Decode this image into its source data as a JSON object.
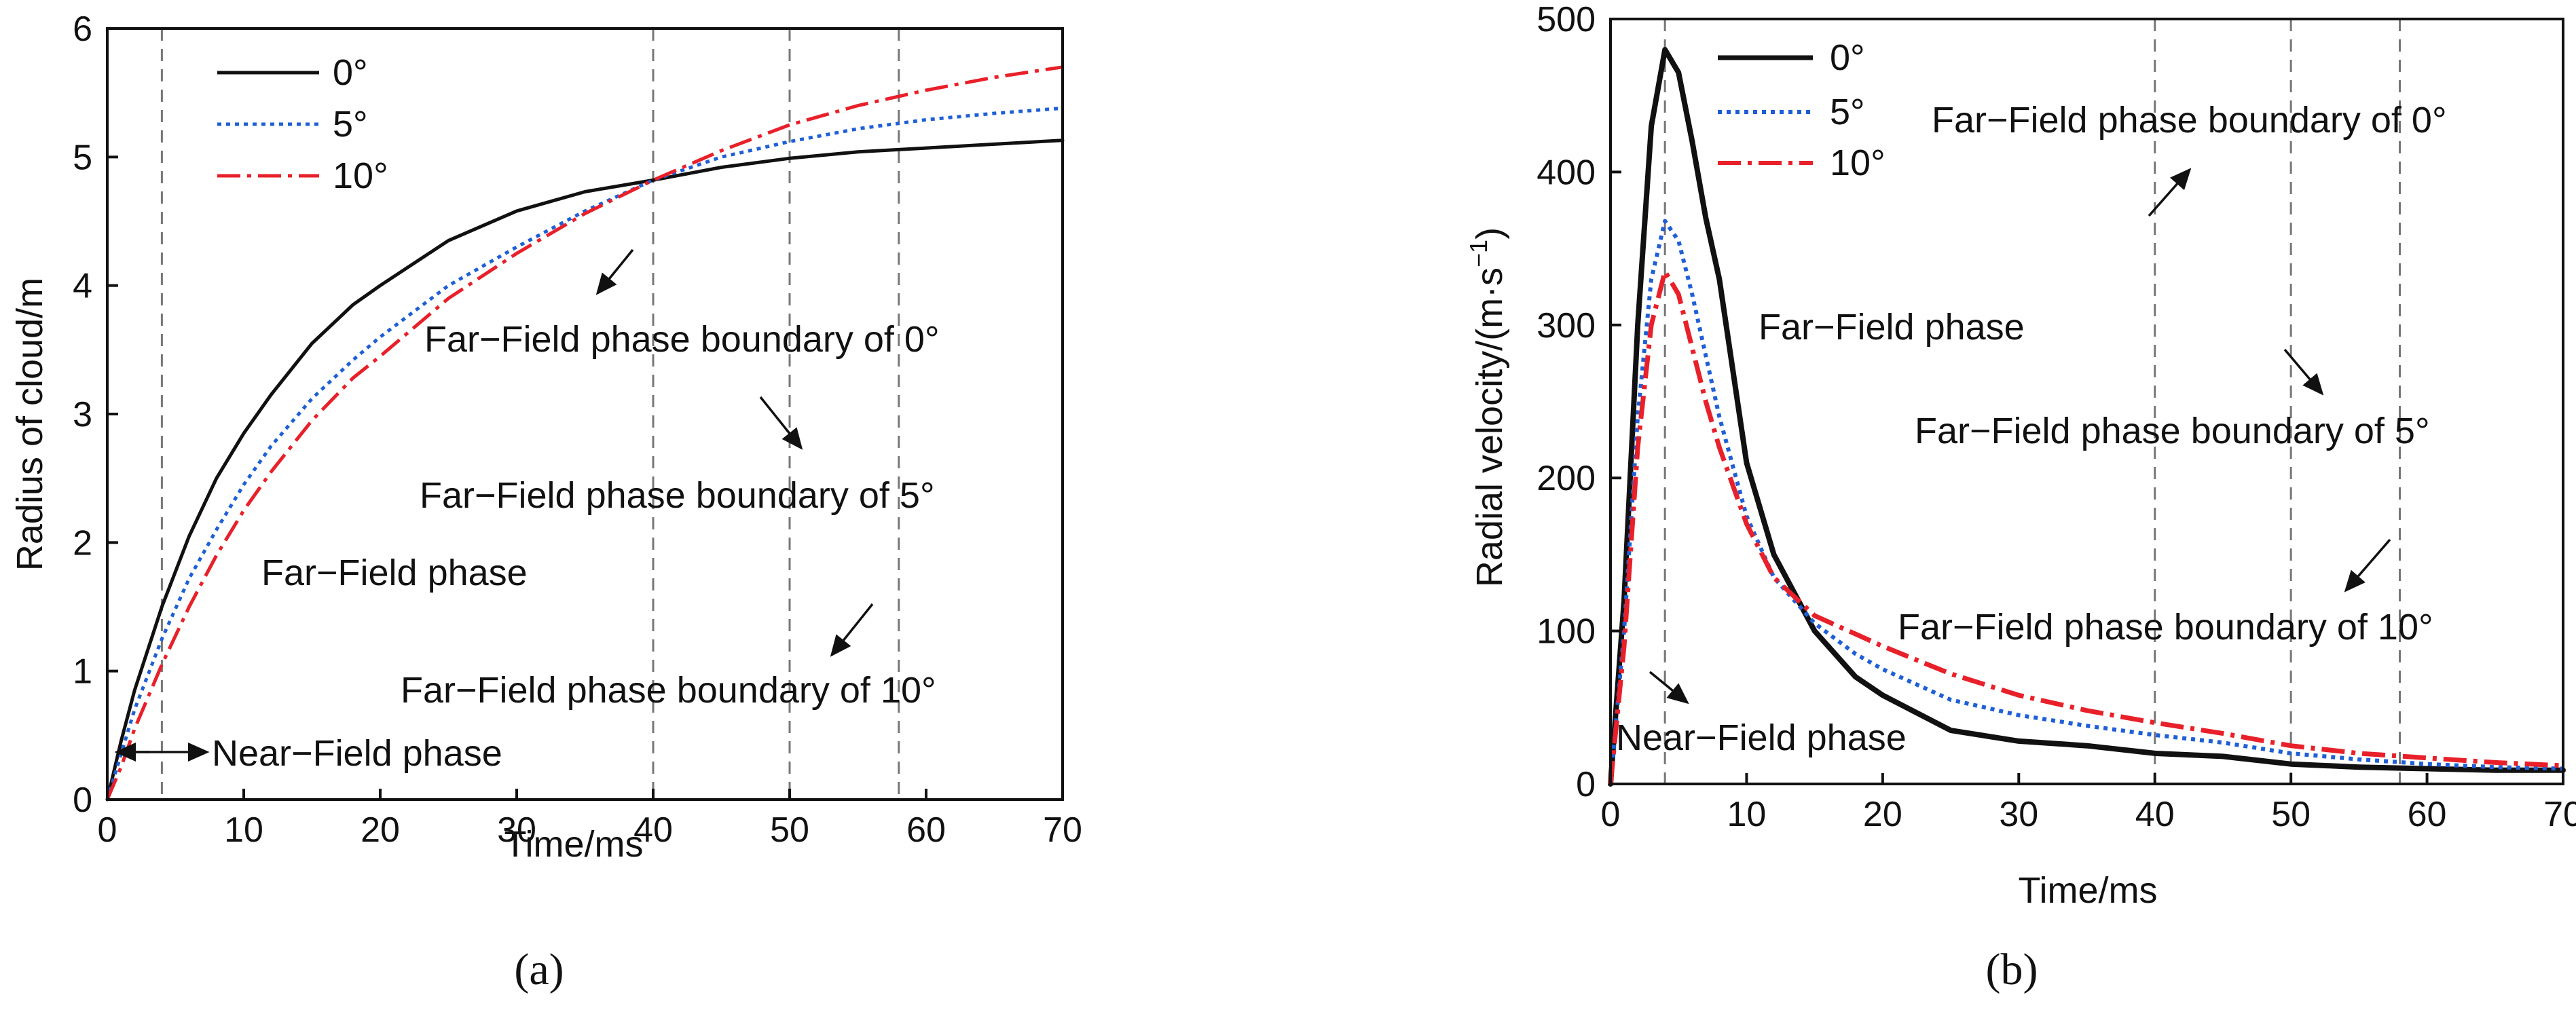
{
  "colors": {
    "s0": "#111111",
    "s5": "#1f5fd6",
    "s10": "#e8202a"
  },
  "chart_data": [
    {
      "id": "a",
      "type": "line",
      "caption": "(a)",
      "xlabel": "Time/ms",
      "ylabel": "Radius of cloud/m",
      "xlim": [
        0,
        70
      ],
      "ylim": [
        0,
        6
      ],
      "xticks": [
        0,
        10,
        20,
        30,
        40,
        50,
        60,
        70
      ],
      "yticks": [
        0,
        1,
        2,
        3,
        4,
        5,
        6
      ],
      "vlines": [
        4,
        40,
        50,
        58
      ],
      "series": [
        {
          "name": "0°",
          "color": "#111111",
          "dash": "",
          "x": [
            0,
            1,
            2,
            4,
            6,
            8,
            10,
            12,
            15,
            18,
            20,
            25,
            30,
            35,
            40,
            45,
            50,
            55,
            60,
            65,
            70
          ],
          "y": [
            0,
            0.45,
            0.85,
            1.5,
            2.05,
            2.5,
            2.85,
            3.15,
            3.55,
            3.85,
            4.0,
            4.35,
            4.58,
            4.73,
            4.82,
            4.92,
            4.99,
            5.04,
            5.07,
            5.1,
            5.13
          ]
        },
        {
          "name": "5°",
          "color": "#1f5fd6",
          "dash": "6 7",
          "x": [
            0,
            1,
            2,
            4,
            6,
            8,
            10,
            12,
            15,
            18,
            20,
            25,
            30,
            35,
            40,
            45,
            50,
            55,
            60,
            65,
            70
          ],
          "y": [
            0,
            0.35,
            0.7,
            1.25,
            1.72,
            2.1,
            2.45,
            2.75,
            3.12,
            3.42,
            3.6,
            4.0,
            4.3,
            4.58,
            4.82,
            5.0,
            5.12,
            5.22,
            5.29,
            5.34,
            5.38
          ]
        },
        {
          "name": "10°",
          "color": "#e8202a",
          "dash": "34 10 6 10",
          "x": [
            0,
            1,
            2,
            4,
            6,
            8,
            10,
            12,
            15,
            18,
            20,
            25,
            30,
            35,
            40,
            45,
            50,
            55,
            60,
            65,
            70
          ],
          "y": [
            0,
            0.25,
            0.55,
            1.05,
            1.5,
            1.9,
            2.25,
            2.55,
            2.95,
            3.28,
            3.45,
            3.9,
            4.25,
            4.56,
            4.82,
            5.05,
            5.25,
            5.4,
            5.52,
            5.62,
            5.7
          ]
        }
      ],
      "legend": [
        "0°",
        "5°",
        "10°"
      ],
      "annotations": [
        "Far−Field phase boundary of 0°",
        "Far−Field phase boundary of 5°",
        "Far−Field phase",
        "Far−Field phase boundary of 10°",
        "Near−Field phase"
      ]
    },
    {
      "id": "b",
      "type": "line",
      "caption": "(b)",
      "xlabel": "Time/ms",
      "ylabel": "Radial velocity/(m·s",
      "ylabel_sup": "−1",
      "ylabel_end": ")",
      "xlim": [
        0,
        70
      ],
      "ylim": [
        0,
        500
      ],
      "xticks": [
        0,
        10,
        20,
        30,
        40,
        50,
        60,
        70
      ],
      "yticks": [
        0,
        100,
        200,
        300,
        400,
        500
      ],
      "vlines": [
        4,
        40,
        50,
        58
      ],
      "series": [
        {
          "name": "0°",
          "color": "#111111",
          "dash": "",
          "x": [
            0,
            1,
            2,
            3,
            4,
            5,
            6,
            7,
            8,
            10,
            12,
            15,
            18,
            20,
            25,
            30,
            35,
            40,
            45,
            50,
            55,
            60,
            65,
            70
          ],
          "y": [
            0,
            120,
            300,
            430,
            480,
            465,
            420,
            370,
            330,
            210,
            150,
            100,
            70,
            58,
            35,
            28,
            25,
            20,
            18,
            13,
            11,
            10,
            9,
            9
          ]
        },
        {
          "name": "5°",
          "color": "#1f5fd6",
          "dash": "6 7",
          "x": [
            0,
            1,
            2,
            3,
            4,
            5,
            6,
            7,
            8,
            10,
            12,
            15,
            18,
            20,
            25,
            30,
            35,
            40,
            45,
            50,
            55,
            60,
            65,
            70
          ],
          "y": [
            0,
            100,
            240,
            330,
            368,
            355,
            320,
            280,
            240,
            175,
            135,
            105,
            85,
            75,
            55,
            45,
            38,
            32,
            27,
            20,
            16,
            13,
            11,
            10
          ]
        },
        {
          "name": "10°",
          "color": "#e8202a",
          "dash": "34 10 6 10",
          "x": [
            0,
            1,
            2,
            3,
            4,
            5,
            6,
            7,
            8,
            10,
            12,
            15,
            18,
            20,
            25,
            30,
            35,
            40,
            45,
            50,
            55,
            60,
            65,
            70
          ],
          "y": [
            0,
            90,
            220,
            300,
            335,
            320,
            285,
            250,
            220,
            170,
            135,
            110,
            98,
            90,
            72,
            58,
            48,
            40,
            33,
            25,
            20,
            17,
            14,
            12
          ]
        }
      ],
      "legend": [
        "0°",
        "5°",
        "10°"
      ],
      "annotations": [
        "Far−Field phase boundary of 0°",
        "Far−Field phase",
        "Far−Field phase boundary of 5°",
        "Far−Field phase boundary of 10°",
        "Near−Field phase"
      ]
    }
  ]
}
